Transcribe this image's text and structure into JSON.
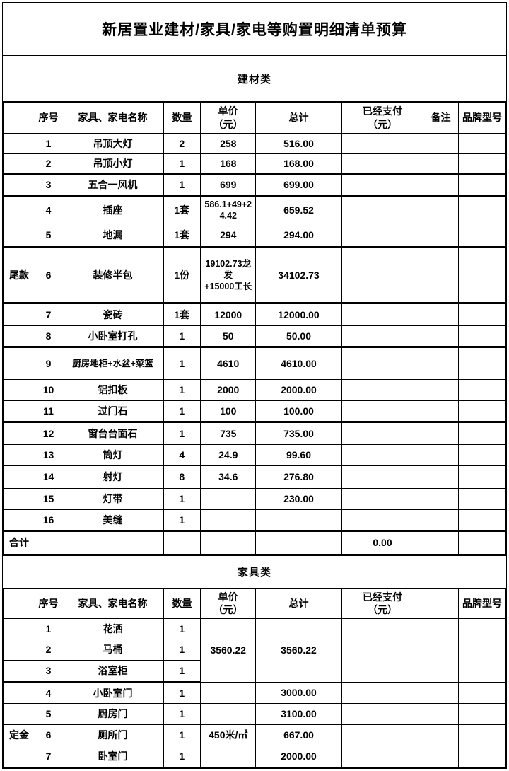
{
  "document_title": "新居置业建材/家具/家电等购置明细清单预算",
  "sections": [
    {
      "title": "建材类",
      "columns": {
        "group": "",
        "no": "序号",
        "name": "家具、家电名称",
        "qty": "数量",
        "unit_price": "单价\n（元）",
        "total": "总计",
        "paid": "已经支付\n（元）",
        "note": "备注",
        "brand": "品牌型号"
      },
      "rows": [
        {
          "label": "",
          "no": "1",
          "name": "吊顶大灯",
          "qty": "2",
          "unit_price": "258",
          "total": "516.00",
          "paid": "",
          "note": "",
          "brand": ""
        },
        {
          "label": "",
          "no": "2",
          "name": "吊顶小灯",
          "qty": "1",
          "unit_price": "168",
          "total": "168.00",
          "paid": "",
          "note": "",
          "brand": ""
        },
        {
          "label": "",
          "no": "3",
          "name": "五合一风机",
          "qty": "1",
          "unit_price": "699",
          "total": "699.00",
          "paid": "",
          "note": "",
          "brand": ""
        },
        {
          "label": "",
          "no": "4",
          "name": "插座",
          "qty": "1套",
          "unit_price": "586.1+49+24.42",
          "total": "659.52",
          "paid": "",
          "note": "",
          "brand": ""
        },
        {
          "label": "",
          "no": "5",
          "name": "地漏",
          "qty": "1套",
          "unit_price": "294",
          "total": "294.00",
          "paid": "",
          "note": "",
          "brand": ""
        },
        {
          "label": "尾款",
          "no": "6",
          "name": "装修半包",
          "qty": "1份",
          "unit_price": "19102.73龙发\n+15000工长",
          "total": "34102.73",
          "paid": "",
          "note": "",
          "brand": ""
        },
        {
          "label": "",
          "no": "7",
          "name": "瓷砖",
          "qty": "1套",
          "unit_price": "12000",
          "total": "12000.00",
          "paid": "",
          "note": "",
          "brand": ""
        },
        {
          "label": "",
          "no": "8",
          "name": "小卧室打孔",
          "qty": "1",
          "unit_price": "50",
          "total": "50.00",
          "paid": "",
          "note": "",
          "brand": ""
        },
        {
          "label": "",
          "no": "9",
          "name": "厨房地柜+水盆+菜篮",
          "qty": "1",
          "unit_price": "4610",
          "total": "4610.00",
          "paid": "",
          "note": "",
          "brand": ""
        },
        {
          "label": "",
          "no": "10",
          "name": "铝扣板",
          "qty": "1",
          "unit_price": "2000",
          "total": "2000.00",
          "paid": "",
          "note": "",
          "brand": ""
        },
        {
          "label": "",
          "no": "11",
          "name": "过门石",
          "qty": "1",
          "unit_price": "100",
          "total": "100.00",
          "paid": "",
          "note": "",
          "brand": ""
        },
        {
          "label": "",
          "no": "12",
          "name": "窗台台面石",
          "qty": "1",
          "unit_price": "735",
          "total": "735.00",
          "paid": "",
          "note": "",
          "brand": ""
        },
        {
          "label": "",
          "no": "13",
          "name": "筒灯",
          "qty": "4",
          "unit_price": "24.9",
          "total": "99.60",
          "paid": "",
          "note": "",
          "brand": ""
        },
        {
          "label": "",
          "no": "14",
          "name": "射灯",
          "qty": "8",
          "unit_price": "34.6",
          "total": "276.80",
          "paid": "",
          "note": "",
          "brand": ""
        },
        {
          "label": "",
          "no": "15",
          "name": "灯带",
          "qty": "1",
          "unit_price": "",
          "total": "230.00",
          "paid": "",
          "note": "",
          "brand": ""
        },
        {
          "label": "",
          "no": "16",
          "name": "美缝",
          "qty": "1",
          "unit_price": "",
          "total": "",
          "paid": "",
          "note": "",
          "brand": ""
        }
      ],
      "total_row": {
        "label": "合计",
        "no": "",
        "name": "",
        "qty": "",
        "unit_price": "",
        "total": "",
        "paid": "0.00",
        "note": "",
        "brand": ""
      }
    },
    {
      "title": "家具类",
      "columns": {
        "group": "",
        "no": "序号",
        "name": "家具、家电名称",
        "qty": "数量",
        "unit_price": "单价\n（元）",
        "total": "总计",
        "paid": "已经支付\n（元）",
        "note": "",
        "brand": "品牌型号"
      },
      "rows": [
        {
          "label": "",
          "no": "1",
          "name": "花洒",
          "qty": "1",
          "unit_price": "3560.22",
          "total": "3560.22",
          "paid": "",
          "note": "",
          "brand": ""
        },
        {
          "label": "",
          "no": "2",
          "name": "马桶",
          "qty": "1"
        },
        {
          "label": "",
          "no": "3",
          "name": "浴室柜",
          "qty": "1"
        },
        {
          "label": "",
          "no": "4",
          "name": "小卧室门",
          "qty": "1",
          "unit_price": "",
          "total": "3000.00",
          "paid": "",
          "note": "",
          "brand": ""
        },
        {
          "label": "",
          "no": "5",
          "name": "厨房门",
          "qty": "1",
          "unit_price": "",
          "total": "3100.00",
          "paid": "",
          "note": "",
          "brand": ""
        },
        {
          "label": "定金",
          "no": "6",
          "name": "厕所门",
          "qty": "1",
          "unit_price": "450米/㎡",
          "total": "667.00",
          "paid": "",
          "note": "",
          "brand": ""
        },
        {
          "label": "",
          "no": "7",
          "name": "卧室门",
          "qty": "1",
          "unit_price": "",
          "total": "2000.00",
          "paid": "",
          "note": "",
          "brand": ""
        }
      ]
    }
  ]
}
